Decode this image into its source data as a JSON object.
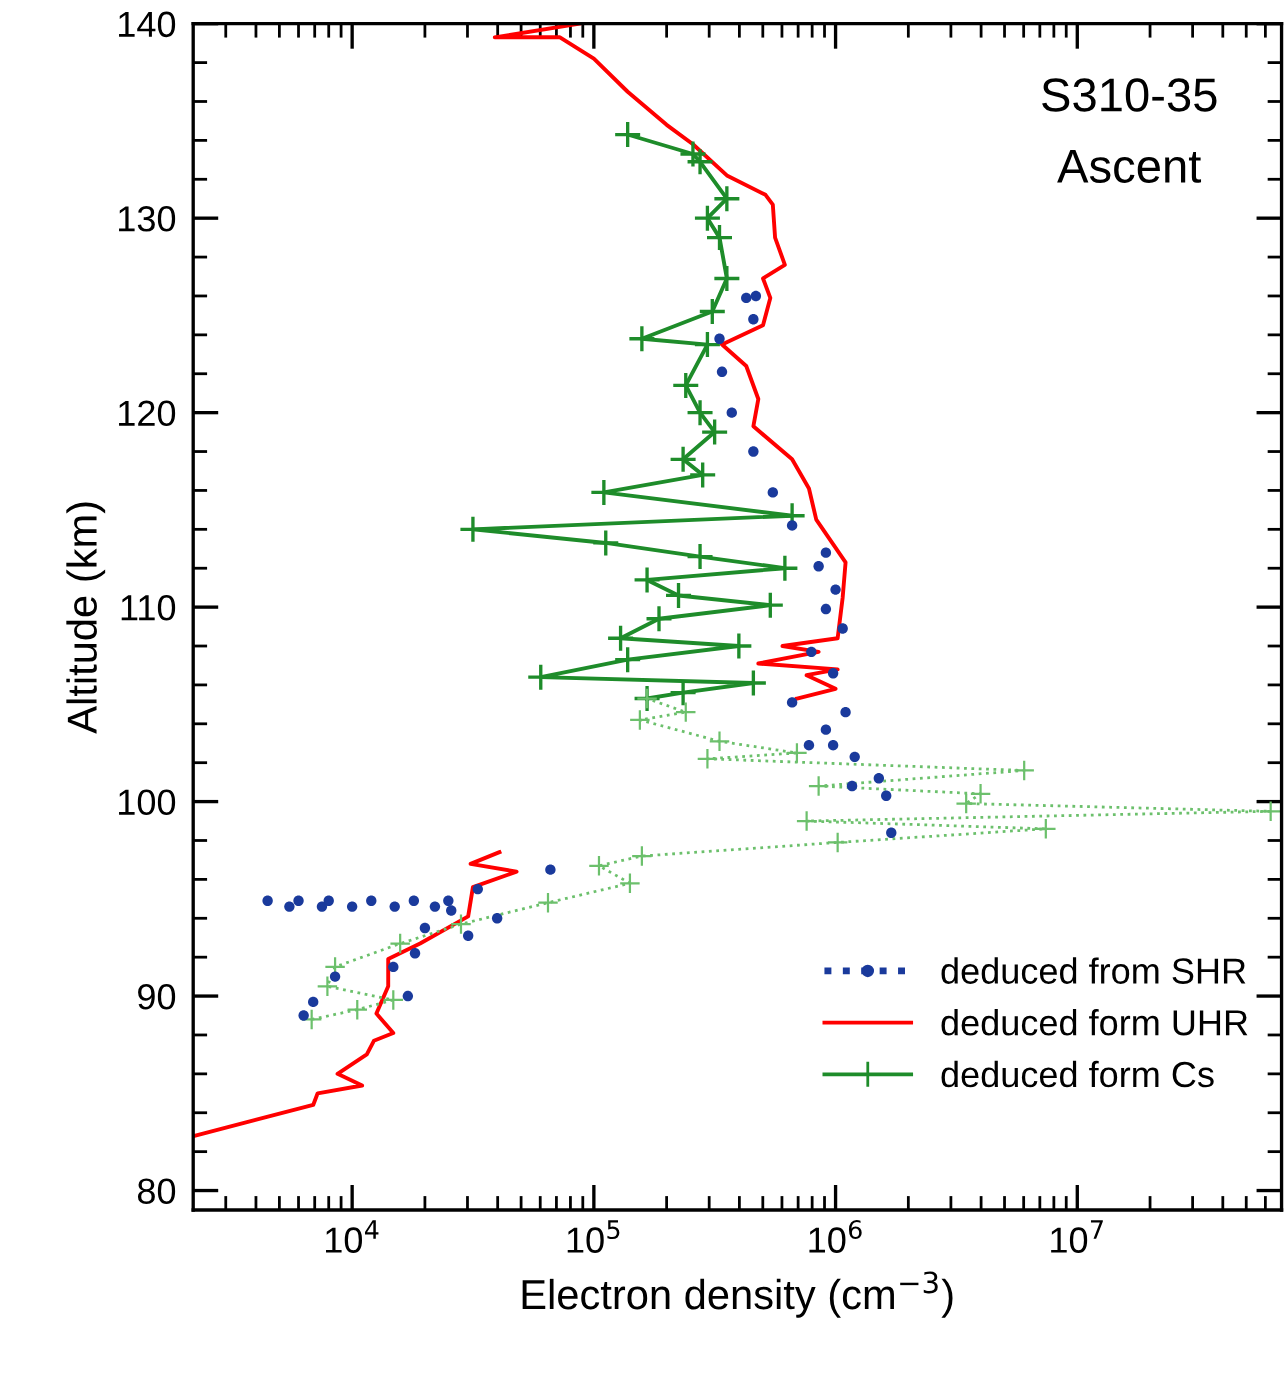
{
  "chart_data": {
    "type": "line",
    "xlabel": "Electron density (cm$^{−3}$)",
    "ylabel": "Altitude (km)",
    "annotations": [
      "S310-35",
      "Ascent"
    ],
    "log": "x",
    "xlim": [
      2200,
      70000000
    ],
    "ylim": [
      79,
      140
    ],
    "xticks": [
      {
        "value": 10000,
        "label": "10$^{4}$"
      },
      {
        "value": 100000,
        "label": "10$^{5}$"
      },
      {
        "value": 1000000,
        "label": "10$^{6}$"
      },
      {
        "value": 10000000,
        "label": "10$^{7}$"
      }
    ],
    "yticks": [
      80,
      {
        "value": 82,
        "label": null
      },
      {
        "value": 84,
        "label": null
      },
      {
        "value": 86,
        "label": null
      },
      {
        "value": 88,
        "label": null
      },
      90,
      {
        "value": 92,
        "label": null
      },
      {
        "value": 94,
        "label": null
      },
      {
        "value": 96,
        "label": null
      },
      {
        "value": 98,
        "label": null
      },
      100,
      {
        "value": 102,
        "label": null
      },
      {
        "value": 104,
        "label": null
      },
      {
        "value": 106,
        "label": null
      },
      {
        "value": 108,
        "label": null
      },
      110,
      {
        "value": 112,
        "label": null
      },
      {
        "value": 114,
        "label": null
      },
      {
        "value": 116,
        "label": null
      },
      {
        "value": 118,
        "label": null
      },
      120,
      {
        "value": 122,
        "label": null
      },
      {
        "value": 124,
        "label": null
      },
      {
        "value": 126,
        "label": null
      },
      {
        "value": 128,
        "label": null
      },
      130,
      {
        "value": 132,
        "label": null
      },
      {
        "value": 134,
        "label": null
      },
      {
        "value": 136,
        "label": null
      },
      {
        "value": 138,
        "label": null
      },
      140
    ],
    "grid": false,
    "legend": "bottom right",
    "series": [
      {
        "name": "deduced from SHR",
        "type": "scatter",
        "marker": "circle",
        "color": "#1a3a9c",
        "x": [
          6300,
          6900,
          17000,
          8500,
          14800,
          18200,
          30200,
          20000,
          39800,
          25700,
          4470,
          6000,
          8000,
          12000,
          18000,
          25000,
          5500,
          7500,
          10000,
          15000,
          22000,
          33100,
          66100,
          1700000,
          1620000,
          1170000,
          1510000,
          1200000,
          977000,
          776000,
          912000,
          1100000,
          661000,
          977000,
          794000,
          1070000,
          912000,
          1000000,
          851000,
          912000,
          661000,
          550000,
          457000,
          372000,
          339000,
          331000,
          457000,
          427000,
          468000
        ],
        "values": [
          89.0,
          89.7,
          90.0,
          91.0,
          91.5,
          92.2,
          93.1,
          93.5,
          94.0,
          94.4,
          94.9,
          94.9,
          94.9,
          94.9,
          94.9,
          94.9,
          94.6,
          94.6,
          94.6,
          94.6,
          94.6,
          95.5,
          96.5,
          98.4,
          100.3,
          100.8,
          101.2,
          102.3,
          102.9,
          102.9,
          103.7,
          104.6,
          105.1,
          106.6,
          107.7,
          108.9,
          109.9,
          110.9,
          112.1,
          112.8,
          114.2,
          115.9,
          118.0,
          120.0,
          122.1,
          123.8,
          124.8,
          125.9,
          126.0
        ]
      },
      {
        "name": "deduced form UHR",
        "marker": "none",
        "line_style": "solid",
        "color": "#ff0000",
        "x": [
          2200,
          6900,
          7200,
          11000,
          8700,
          11500,
          12300,
          14800,
          12600,
          14100,
          14100,
          19100,
          30200,
          31600,
          47900,
          30900,
          40700,
          null,
          692000,
          1000000,
          759000,
          1020000,
          479000,
          851000,
          603000,
          1020000,
          1070000,
          1100000,
          832000,
          776000,
          661000,
          457000,
          479000,
          427000,
          339000,
          501000,
          537000,
          501000,
          617000,
          562000,
          550000,
          513000,
          355000,
          257000,
          200000,
          138000,
          100000,
          72400,
          38900,
          87100
        ],
        "values": [
          82.8,
          84.4,
          85.0,
          85.4,
          86.0,
          87.0,
          87.7,
          88.1,
          89.1,
          90.5,
          91.9,
          92.7,
          94.1,
          95.6,
          96.4,
          96.8,
          97.4,
          null,
          105.3,
          105.8,
          106.5,
          106.8,
          107.1,
          107.7,
          108.0,
          108.4,
          110.5,
          112.3,
          114.5,
          116.1,
          117.6,
          119.3,
          120.7,
          122.4,
          123.5,
          124.5,
          125.9,
          126.9,
          127.6,
          129.0,
          130.7,
          131.2,
          132.2,
          133.8,
          134.8,
          136.5,
          138.2,
          139.3,
          139.3,
          140.0
        ]
      },
      {
        "name": "deduced form Cs",
        "marker": "cross",
        "line_style": "solid",
        "color": "#1e8c2a",
        "x": [
          166000,
          234000,
          457000,
          60300,
          138000,
          398000,
          129000,
          186000,
          537000,
          224000,
          166000,
          617000,
          275000,
          112000,
          31600,
          661000,
          110000,
          282000,
          234000,
          316000,
          275000,
          240000,
          295000,
          158000,
          309000,
          355000,
          331000,
          295000,
          355000,
          275000,
          257000,
          138000
        ],
        "values": [
          105.3,
          105.6,
          106.1,
          106.4,
          107.3,
          108.0,
          108.4,
          109.4,
          110.1,
          110.6,
          111.4,
          112.0,
          112.6,
          113.3,
          114.0,
          114.7,
          115.9,
          116.8,
          117.6,
          119.0,
          120.0,
          121.4,
          123.5,
          123.8,
          125.2,
          126.9,
          129.0,
          130.0,
          131.0,
          132.9,
          133.3,
          134.3
        ]
      },
      {
        "marker": "cross",
        "line_style": "dotted",
        "color": "#6cc06c",
        "x": [
          6800,
          10500,
          14800,
          7900,
          8500,
          15800,
          28200,
          64600,
          141000,
          105000,
          158000,
          1020000,
          7410000,
          759000,
          63100000,
          3470000,
          3980000,
          851000,
          6030000,
          295000,
          692000,
          331000,
          155000,
          240000,
          166000
        ],
        "values": [
          88.8,
          89.3,
          89.8,
          90.5,
          91.5,
          92.7,
          93.7,
          94.8,
          95.8,
          96.7,
          97.2,
          97.9,
          98.6,
          99.0,
          99.5,
          99.9,
          100.4,
          100.8,
          101.6,
          102.2,
          102.5,
          103.1,
          104.2,
          104.6,
          105.3
        ]
      }
    ]
  }
}
